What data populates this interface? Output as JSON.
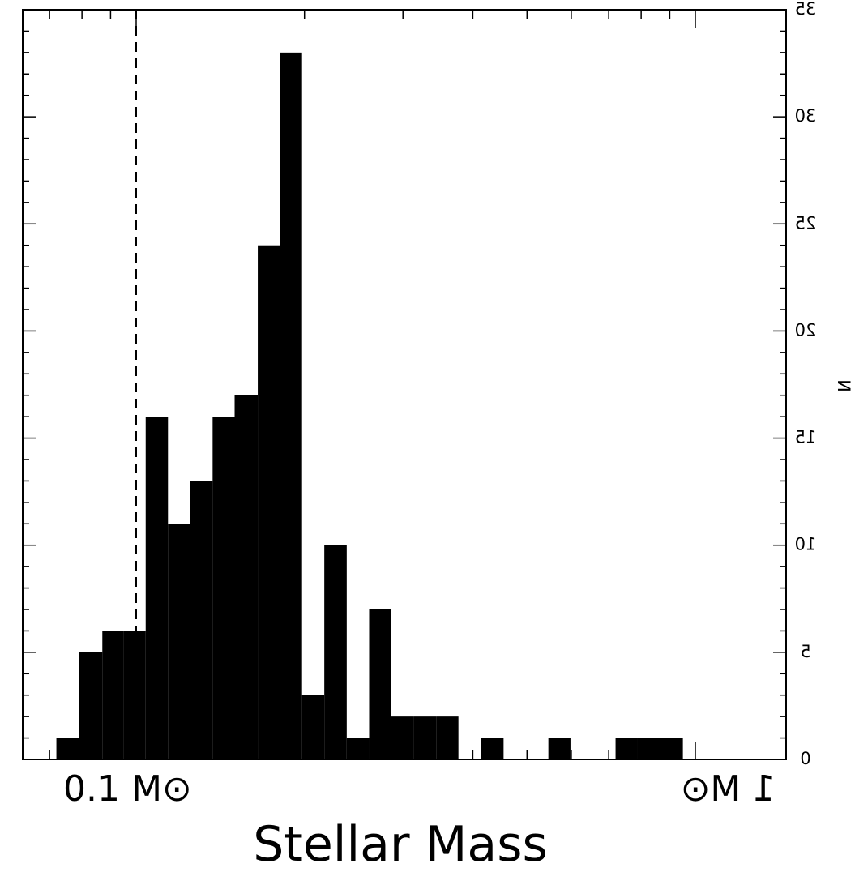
{
  "chart_data": {
    "type": "bar",
    "title": "",
    "xlabel": "Stellar Mass",
    "ylabel": "N",
    "ylim": [
      0,
      35
    ],
    "y_ticks": [
      "0",
      "5",
      "10",
      "15",
      "20",
      "25",
      "30",
      "35"
    ],
    "x_ticks": [
      "0.1 M⊙",
      "1 M⊙"
    ],
    "x_scale": "log",
    "vline": {
      "x": 0.1,
      "style": "dashed"
    },
    "bar_color": "#000000",
    "grid": false,
    "legend": "none",
    "note": "figure is rendered mirrored (text appears reversed)",
    "bins": [
      {
        "lo": 0.072,
        "hi": 0.079,
        "value": 1
      },
      {
        "lo": 0.079,
        "hi": 0.087,
        "value": 5
      },
      {
        "lo": 0.087,
        "hi": 0.095,
        "value": 6
      },
      {
        "lo": 0.095,
        "hi": 0.104,
        "value": 6
      },
      {
        "lo": 0.104,
        "hi": 0.114,
        "value": 16
      },
      {
        "lo": 0.114,
        "hi": 0.125,
        "value": 11
      },
      {
        "lo": 0.125,
        "hi": 0.137,
        "value": 13
      },
      {
        "lo": 0.137,
        "hi": 0.15,
        "value": 16
      },
      {
        "lo": 0.15,
        "hi": 0.165,
        "value": 17
      },
      {
        "lo": 0.165,
        "hi": 0.181,
        "value": 24
      },
      {
        "lo": 0.181,
        "hi": 0.198,
        "value": 33
      },
      {
        "lo": 0.198,
        "hi": 0.217,
        "value": 3
      },
      {
        "lo": 0.217,
        "hi": 0.238,
        "value": 10
      },
      {
        "lo": 0.238,
        "hi": 0.261,
        "value": 1
      },
      {
        "lo": 0.261,
        "hi": 0.286,
        "value": 7
      },
      {
        "lo": 0.286,
        "hi": 0.314,
        "value": 2
      },
      {
        "lo": 0.314,
        "hi": 0.344,
        "value": 2
      },
      {
        "lo": 0.344,
        "hi": 0.377,
        "value": 2
      },
      {
        "lo": 0.377,
        "hi": 0.414,
        "value": 0
      },
      {
        "lo": 0.414,
        "hi": 0.454,
        "value": 1
      },
      {
        "lo": 0.454,
        "hi": 0.498,
        "value": 0
      },
      {
        "lo": 0.498,
        "hi": 0.546,
        "value": 0
      },
      {
        "lo": 0.546,
        "hi": 0.598,
        "value": 1
      },
      {
        "lo": 0.598,
        "hi": 0.656,
        "value": 0
      },
      {
        "lo": 0.656,
        "hi": 0.72,
        "value": 0
      },
      {
        "lo": 0.72,
        "hi": 0.789,
        "value": 1
      },
      {
        "lo": 0.789,
        "hi": 0.866,
        "value": 1
      },
      {
        "lo": 0.866,
        "hi": 0.95,
        "value": 1
      }
    ]
  }
}
